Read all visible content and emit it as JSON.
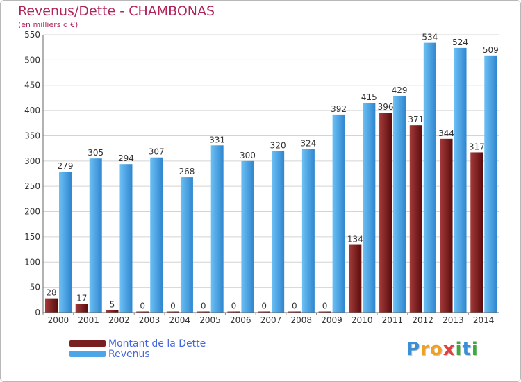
{
  "chart_data": {
    "type": "bar",
    "title": "Revenus/Dette - CHAMBONAS",
    "subtitle": "(en milliers d'€)",
    "categories": [
      "2000",
      "2001",
      "2002",
      "2003",
      "2004",
      "2005",
      "2006",
      "2007",
      "2008",
      "2009",
      "2010",
      "2011",
      "2012",
      "2013",
      "2014"
    ],
    "series": [
      {
        "name": "Montant de la Dette",
        "color": "#7a1f1f",
        "values": [
          28,
          17,
          5,
          0,
          0,
          0,
          0,
          0,
          0,
          0,
          134,
          396,
          371,
          344,
          317
        ]
      },
      {
        "name": "Revenus",
        "color": "#4da6e8",
        "values": [
          279,
          305,
          294,
          307,
          268,
          331,
          300,
          320,
          324,
          392,
          415,
          429,
          534,
          524,
          509
        ]
      }
    ],
    "ylim": [
      0,
      550
    ],
    "yticks": [
      0,
      50,
      100,
      150,
      200,
      250,
      300,
      350,
      400,
      450,
      500,
      550
    ],
    "grid": true,
    "legend_position": "bottom-left"
  },
  "logo": {
    "letters": [
      {
        "ch": "P",
        "color": "#3a8fd6"
      },
      {
        "ch": "r",
        "color": "#f0a020"
      },
      {
        "ch": "o",
        "color": "#f0a020"
      },
      {
        "ch": "x",
        "color": "#e04040"
      },
      {
        "ch": "i",
        "color": "#3aaa3a"
      },
      {
        "ch": "t",
        "color": "#3a8fd6"
      },
      {
        "ch": "i",
        "color": "#3aaa3a"
      }
    ]
  }
}
